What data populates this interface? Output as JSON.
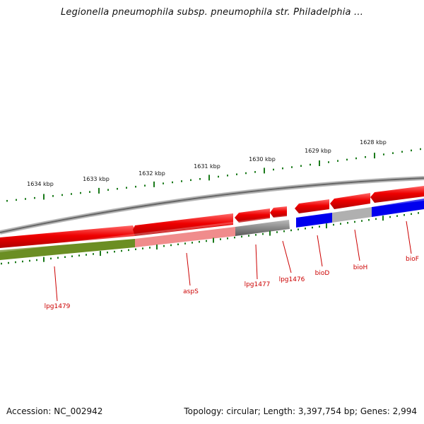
{
  "title": "Legionella pneumophila subsp. pneumophila str. Philadelphia ...",
  "footer": {
    "accession": "Accession: NC_002942",
    "summary": "Topology: circular; Length: 3,397,754 bp; Genes: 2,994"
  },
  "colors": {
    "background": "#ffffff",
    "tick": "#1a7a1a",
    "backbone": "#777777",
    "forward_gene": "#ee0000",
    "label": "#cc0000",
    "blue": "#0000ee",
    "olive": "#6b8e23",
    "pink": "#f08c8c",
    "gray_dark": "#555555",
    "gray_light": "#b0b0b0"
  },
  "ruler": {
    "kbp_labels": [
      "1634 kbp",
      "1633 kbp",
      "1632 kbp",
      "1631 kbp",
      "1630 kbp",
      "1629 kbp",
      "1628 kbp"
    ]
  },
  "genes": [
    {
      "label": "lpg1479",
      "strand": "reverse",
      "color": "olive"
    },
    {
      "label": "aspS",
      "strand": "reverse",
      "color": "pink"
    },
    {
      "label": "lpg1477",
      "strand": "reverse",
      "color": "gray_dark"
    },
    {
      "label": "lpg1476",
      "strand": "forward",
      "color": "red"
    },
    {
      "label": "bioD",
      "strand": "reverse",
      "color": "blue"
    },
    {
      "label": "bioH",
      "strand": "reverse",
      "color": "gray_light"
    },
    {
      "label": "bioF",
      "strand": "reverse",
      "color": "blue"
    }
  ]
}
